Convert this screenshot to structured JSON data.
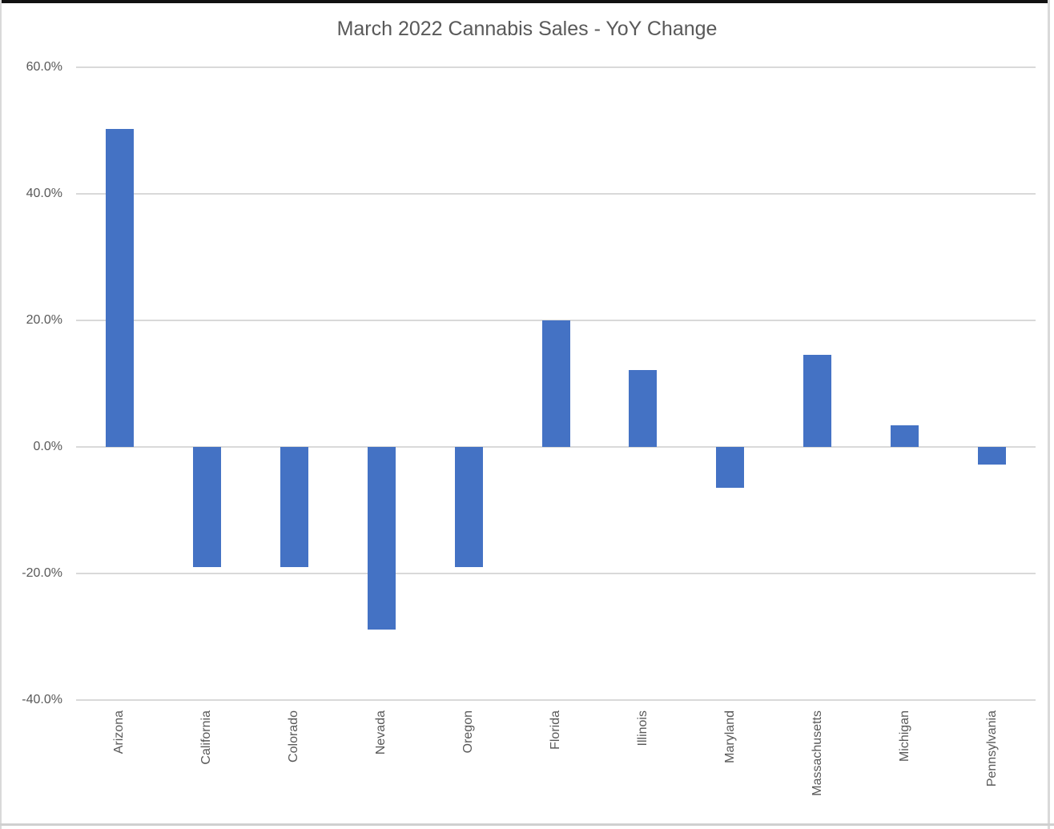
{
  "title": "March 2022 Cannabis Sales - YoY Change",
  "colors": {
    "bar": "#4472C4",
    "gridline": "#D9D9D9",
    "axis_text": "#595959",
    "title_text": "#595959",
    "frame_top": "#111111",
    "frame_gray": "#D9D9D9"
  },
  "chart_data": {
    "type": "bar",
    "title": "March 2022 Cannabis Sales - YoY Change",
    "categories": [
      "Arizona",
      "California",
      "Colorado",
      "Nevada",
      "Oregon",
      "Florida",
      "Illinois",
      "Maryland",
      "Massachusetts",
      "Michigan",
      "Pennsylvania"
    ],
    "values": [
      50.3,
      -19.0,
      -19.0,
      -28.8,
      -19.0,
      20.0,
      12.2,
      -6.4,
      14.5,
      3.4,
      -2.8
    ],
    "unit": "%",
    "xlabel": "",
    "ylabel": "",
    "ylim": [
      -40,
      60
    ],
    "ytick_step": 20,
    "ytick_labels": [
      "60.0%",
      "40.0%",
      "20.0%",
      "0.0%",
      "-20.0%",
      "-40.0%"
    ],
    "grid": true,
    "legend_position": "none",
    "bar_orientation": "vertical",
    "xlabel_rotation_deg": 90
  }
}
